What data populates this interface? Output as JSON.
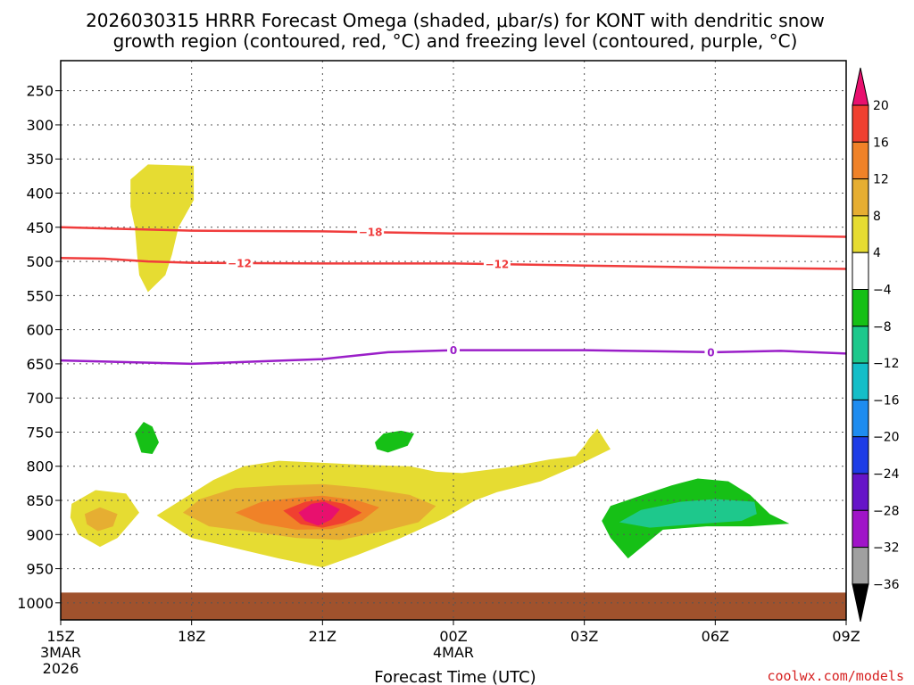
{
  "chart_data": {
    "type": "contour",
    "title_line1": "2026030315 HRRR Forecast Omega (shaded, μbar/s) for KONT with dendritic snow",
    "title_line2": "growth region (contoured, red, °C) and freezing level (contoured, purple, °C)",
    "xlabel": "Forecast Time (UTC)",
    "credit": "coolwx.com/models",
    "credit_color": "#d62020",
    "x_range_hours": [
      0,
      18
    ],
    "x_ticks": [
      {
        "hour": 0,
        "label": "15Z",
        "sub1": "3MAR",
        "sub2": "2026"
      },
      {
        "hour": 3,
        "label": "18Z"
      },
      {
        "hour": 6,
        "label": "21Z"
      },
      {
        "hour": 9,
        "label": "00Z",
        "sub1": "4MAR"
      },
      {
        "hour": 12,
        "label": "03Z"
      },
      {
        "hour": 15,
        "label": "06Z"
      },
      {
        "hour": 18,
        "label": "09Z"
      }
    ],
    "y_range_mb": [
      206,
      1025
    ],
    "y_ticks": [
      250,
      300,
      350,
      400,
      450,
      500,
      550,
      600,
      650,
      700,
      750,
      800,
      850,
      900,
      950,
      1000
    ],
    "terrain_top_mb": 985,
    "terrain_color": "#a0522d",
    "grid": true,
    "colorbar": {
      "levels": [
        20,
        16,
        12,
        8,
        4,
        -4,
        -8,
        -12,
        -16,
        -20,
        -24,
        -28,
        -32,
        -36
      ],
      "colors": [
        "#e8106e",
        "#f04030",
        "#f08228",
        "#e6ae32",
        "#e6dc32",
        "#ffffff",
        "#16c016",
        "#1ec88c",
        "#14bec8",
        "#1e8cf0",
        "#1e3ce6",
        "#6614c8",
        "#a014c8",
        "#a0a0a0",
        "#000000"
      ]
    },
    "contours": [
      {
        "name": "dgz-minus18",
        "label": "-18",
        "color": "#f03c3c",
        "points": [
          [
            0,
            450
          ],
          [
            3,
            455
          ],
          [
            6,
            456
          ],
          [
            9,
            459
          ],
          [
            12,
            460
          ],
          [
            15,
            461
          ],
          [
            18,
            464
          ]
        ],
        "label_at": [
          7.1
        ]
      },
      {
        "name": "dgz-minus12",
        "label": "-12",
        "color": "#f03c3c",
        "points": [
          [
            0,
            495
          ],
          [
            1,
            496
          ],
          [
            2,
            500
          ],
          [
            3,
            502
          ],
          [
            6,
            503
          ],
          [
            9,
            503
          ],
          [
            12,
            506
          ],
          [
            15,
            509
          ],
          [
            18,
            511
          ]
        ],
        "label_at": [
          4.1,
          10.0
        ]
      },
      {
        "name": "freezing-level-0",
        "label": "0",
        "color": "#9a1ec8",
        "points": [
          [
            0,
            645
          ],
          [
            3,
            650
          ],
          [
            6,
            643
          ],
          [
            7.5,
            633
          ],
          [
            9,
            630
          ],
          [
            12,
            630
          ],
          [
            15,
            633
          ],
          [
            16.5,
            631
          ],
          [
            18,
            635
          ]
        ],
        "label_at": [
          9.0,
          14.9
        ]
      }
    ],
    "shaded_regions": [
      {
        "name": "omega-plus4-upper",
        "value_class": "4 to 8",
        "color": "#e6dc32",
        "points": [
          [
            1.6,
            380
          ],
          [
            2.0,
            358
          ],
          [
            3.05,
            360
          ],
          [
            3.05,
            410
          ],
          [
            2.7,
            450
          ],
          [
            2.55,
            490
          ],
          [
            2.4,
            520
          ],
          [
            2.0,
            545
          ],
          [
            1.8,
            520
          ],
          [
            1.75,
            490
          ],
          [
            1.7,
            450
          ],
          [
            1.6,
            420
          ]
        ]
      },
      {
        "name": "omega-plus4-left",
        "value_class": "4 to 8",
        "color": "#e6dc32",
        "points": [
          [
            0.25,
            855
          ],
          [
            0.8,
            835
          ],
          [
            1.5,
            840
          ],
          [
            1.8,
            868
          ],
          [
            1.3,
            905
          ],
          [
            0.9,
            918
          ],
          [
            0.4,
            900
          ],
          [
            0.22,
            875
          ]
        ]
      },
      {
        "name": "omega-plus8-left",
        "value_class": "8 to 12",
        "color": "#e6ae32",
        "points": [
          [
            0.55,
            870
          ],
          [
            0.9,
            860
          ],
          [
            1.3,
            870
          ],
          [
            1.2,
            888
          ],
          [
            0.85,
            895
          ],
          [
            0.6,
            885
          ]
        ]
      },
      {
        "name": "omega-plus4-main",
        "value_class": "4 to 8",
        "color": "#e6dc32",
        "points": [
          [
            2.2,
            872
          ],
          [
            2.8,
            848
          ],
          [
            3.5,
            820
          ],
          [
            4.2,
            800
          ],
          [
            5.0,
            792
          ],
          [
            6.0,
            795
          ],
          [
            7.0,
            798
          ],
          [
            8.0,
            800
          ],
          [
            8.6,
            808
          ],
          [
            9.2,
            810
          ],
          [
            10.2,
            802
          ],
          [
            11.2,
            790
          ],
          [
            11.8,
            785
          ],
          [
            12.0,
            770
          ],
          [
            12.1,
            760
          ],
          [
            12.3,
            745
          ],
          [
            12.6,
            775
          ],
          [
            11.8,
            800
          ],
          [
            11.0,
            822
          ],
          [
            10.0,
            838
          ],
          [
            9.5,
            850
          ],
          [
            8.8,
            876
          ],
          [
            7.8,
            905
          ],
          [
            6.8,
            930
          ],
          [
            6.0,
            948
          ],
          [
            5.0,
            935
          ],
          [
            4.0,
            920
          ],
          [
            3.0,
            905
          ]
        ]
      },
      {
        "name": "omega-plus8-main",
        "value_class": "8 to 12",
        "color": "#e6ae32",
        "points": [
          [
            2.8,
            868
          ],
          [
            3.2,
            848
          ],
          [
            4.0,
            832
          ],
          [
            5.0,
            828
          ],
          [
            6.0,
            826
          ],
          [
            7.0,
            832
          ],
          [
            8.0,
            842
          ],
          [
            8.6,
            858
          ],
          [
            8.2,
            882
          ],
          [
            7.4,
            895
          ],
          [
            6.4,
            908
          ],
          [
            5.4,
            905
          ],
          [
            4.4,
            896
          ],
          [
            3.4,
            888
          ]
        ]
      },
      {
        "name": "omega-plus12-main",
        "value_class": "12 to 16",
        "color": "#f08228",
        "points": [
          [
            4.0,
            868
          ],
          [
            4.6,
            852
          ],
          [
            5.4,
            846
          ],
          [
            6.0,
            843
          ],
          [
            6.8,
            850
          ],
          [
            7.3,
            860
          ],
          [
            6.9,
            880
          ],
          [
            6.2,
            892
          ],
          [
            5.4,
            893
          ],
          [
            4.6,
            884
          ]
        ]
      },
      {
        "name": "omega-plus16-main",
        "value_class": "16 to 20",
        "color": "#f04030",
        "points": [
          [
            5.1,
            865
          ],
          [
            5.6,
            852
          ],
          [
            6.0,
            849
          ],
          [
            6.5,
            855
          ],
          [
            6.9,
            868
          ],
          [
            6.5,
            883
          ],
          [
            6.0,
            890
          ],
          [
            5.5,
            885
          ]
        ]
      },
      {
        "name": "omega-plus20-main",
        "value_class": "above 20",
        "color": "#e8106e",
        "points": [
          [
            5.45,
            868
          ],
          [
            5.75,
            855
          ],
          [
            6.05,
            852
          ],
          [
            6.4,
            863
          ],
          [
            6.2,
            878
          ],
          [
            5.9,
            887
          ],
          [
            5.6,
            880
          ]
        ]
      },
      {
        "name": "omega-minus4-small-left",
        "value_class": "-4 to -8",
        "color": "#16c016",
        "points": [
          [
            1.7,
            752
          ],
          [
            1.9,
            735
          ],
          [
            2.1,
            742
          ],
          [
            2.25,
            765
          ],
          [
            2.1,
            782
          ],
          [
            1.85,
            780
          ]
        ]
      },
      {
        "name": "omega-minus4-small-mid",
        "value_class": "-4 to -8",
        "color": "#16c016",
        "points": [
          [
            7.2,
            765
          ],
          [
            7.4,
            752
          ],
          [
            7.8,
            748
          ],
          [
            8.1,
            752
          ],
          [
            7.95,
            770
          ],
          [
            7.5,
            780
          ],
          [
            7.25,
            775
          ]
        ]
      },
      {
        "name": "omega-minus4-right",
        "value_class": "-4 to -8",
        "color": "#16c016",
        "points": [
          [
            12.4,
            880
          ],
          [
            12.6,
            858
          ],
          [
            13.2,
            845
          ],
          [
            14.0,
            828
          ],
          [
            14.6,
            818
          ],
          [
            15.3,
            822
          ],
          [
            15.8,
            842
          ],
          [
            16.25,
            870
          ],
          [
            16.7,
            884
          ],
          [
            15.8,
            888
          ],
          [
            14.8,
            888
          ],
          [
            13.8,
            893
          ],
          [
            13.0,
            935
          ],
          [
            12.6,
            905
          ]
        ]
      },
      {
        "name": "omega-minus8-right",
        "value_class": "-8 to -12",
        "color": "#1ec88c",
        "points": [
          [
            12.8,
            882
          ],
          [
            13.3,
            864
          ],
          [
            14.2,
            852
          ],
          [
            15.0,
            848
          ],
          [
            15.9,
            852
          ],
          [
            15.95,
            870
          ],
          [
            15.6,
            880
          ],
          [
            14.5,
            885
          ],
          [
            13.5,
            890
          ]
        ]
      }
    ]
  }
}
